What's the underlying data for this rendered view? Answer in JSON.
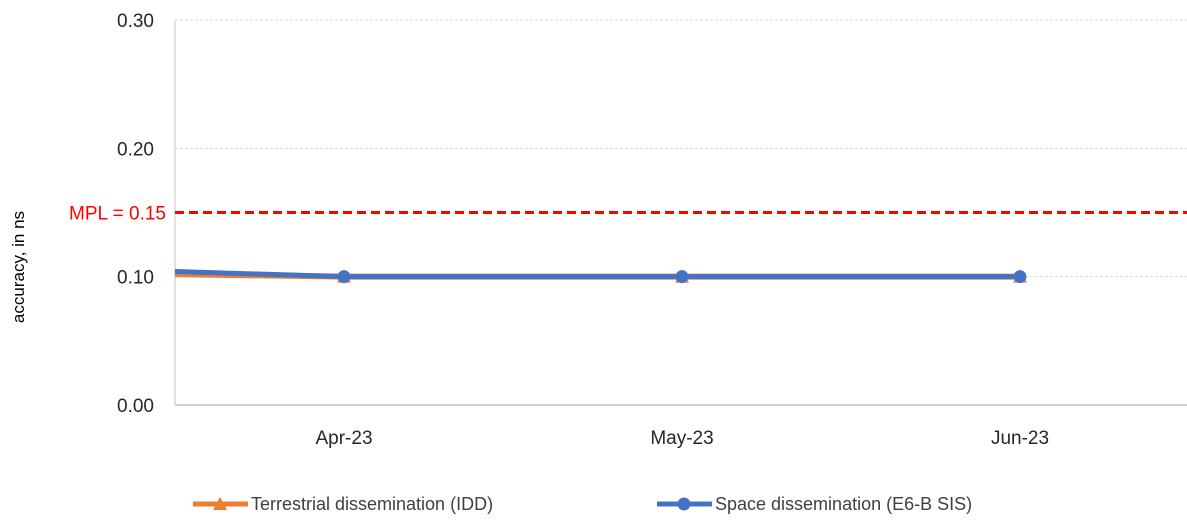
{
  "chart_data": {
    "type": "line",
    "categories": [
      "Apr-23",
      "May-23",
      "Jun-23"
    ],
    "ylabel": "accuracy, in ns",
    "ylim": [
      0,
      0.3
    ],
    "yticks": [
      "0.00",
      "0.10",
      "0.20",
      "0.30"
    ],
    "grid": true,
    "legend_position": "bottom",
    "series": [
      {
        "name": "Terrestrial dissemination (IDD)",
        "values": [
          0.1,
          0.1,
          0.1
        ],
        "start_value": 0.102,
        "color": "#ED7D31",
        "marker": "triangle"
      },
      {
        "name": "Space dissemination (E6-B SIS)",
        "values": [
          0.1,
          0.1,
          0.1
        ],
        "start_value": 0.104,
        "color": "#4472C4",
        "marker": "circle"
      }
    ],
    "threshold": {
      "label": "MPL = 0.15",
      "value": 0.15,
      "color": "#FF0000",
      "style": "dashed"
    }
  }
}
